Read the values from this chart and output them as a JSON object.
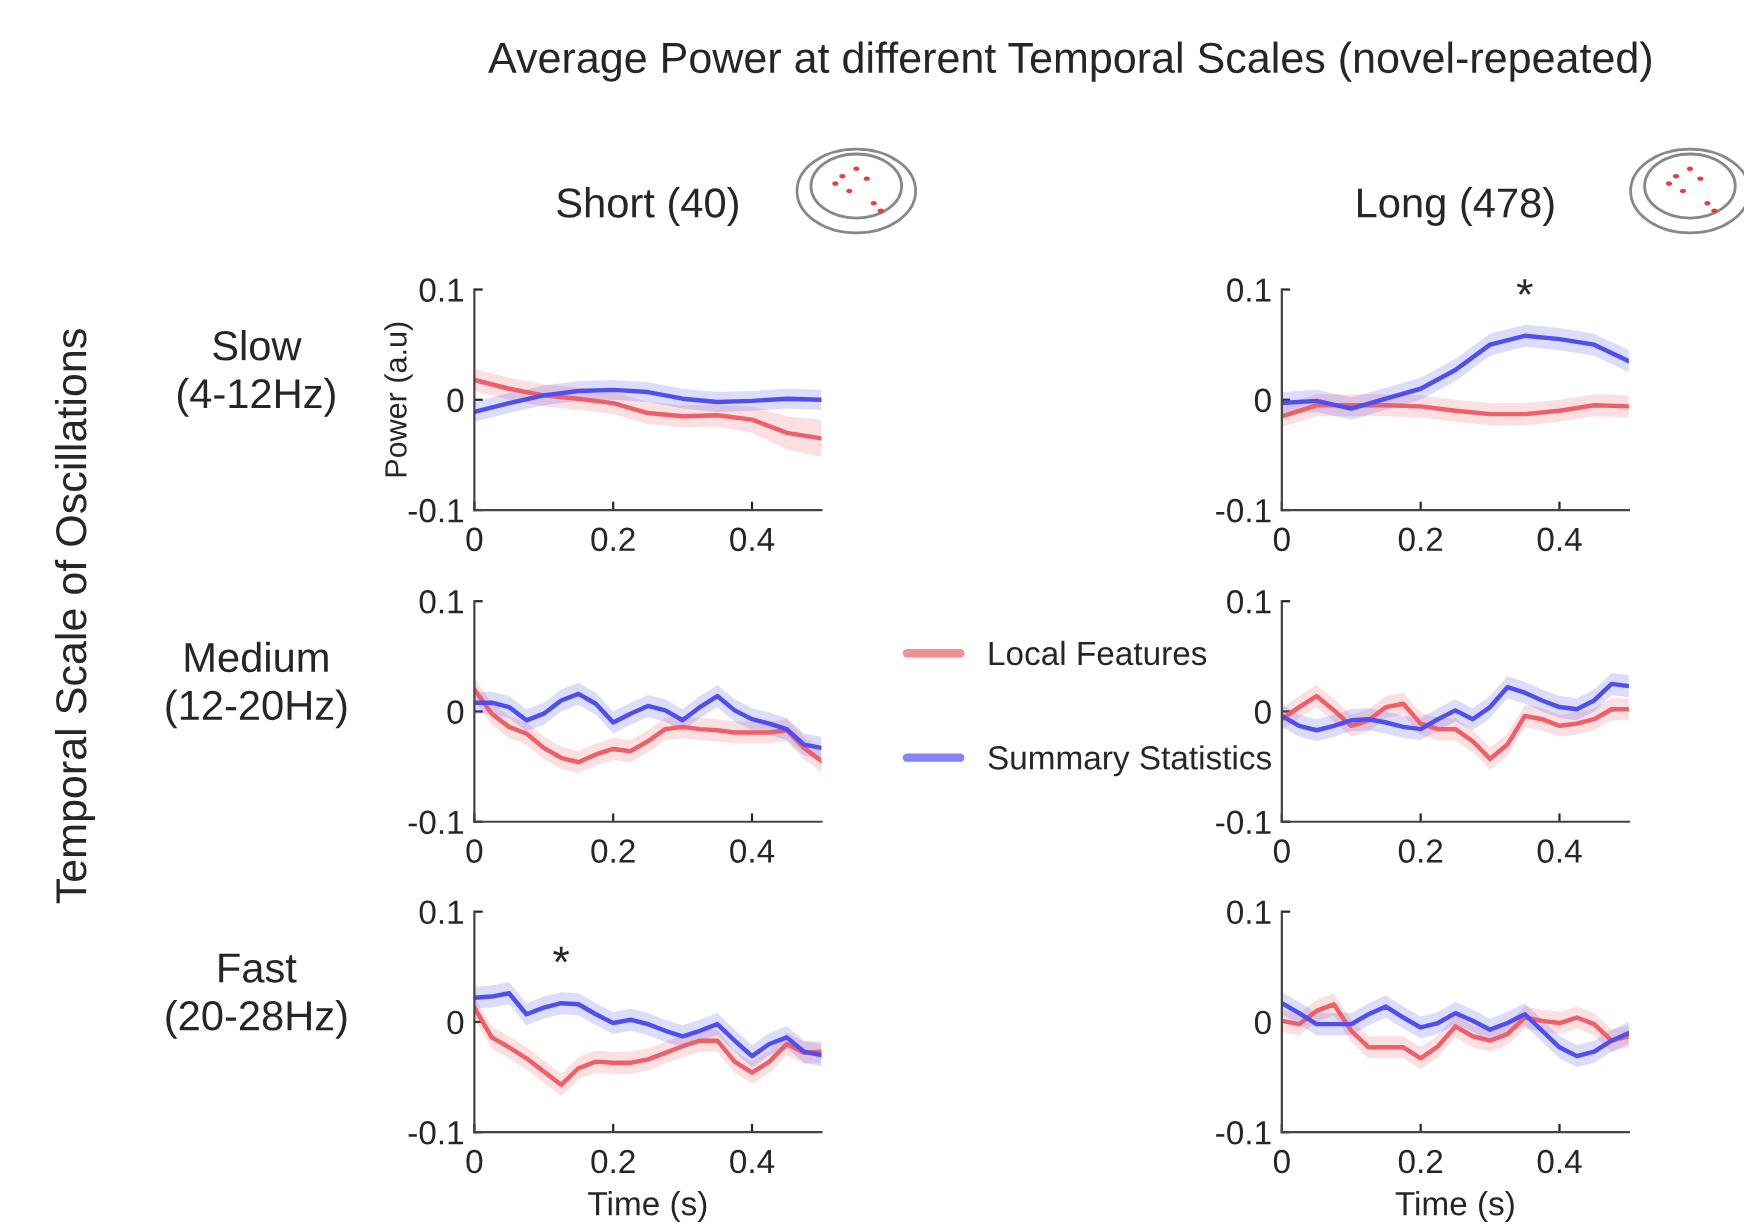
{
  "chart_data": [
    {
      "type": "line",
      "title": "Short (40)",
      "ylabel": "Power (a.u)",
      "x": [
        0,
        0.05,
        0.1,
        0.15,
        0.2,
        0.25,
        0.3,
        0.35,
        0.4,
        0.45,
        0.5
      ],
      "xlim": [
        0,
        0.5
      ],
      "xticks": [
        0,
        0.2,
        0.4
      ],
      "ylim": [
        -0.1,
        0.1
      ],
      "yticks": [
        -0.1,
        0,
        0.1
      ],
      "line_style": "solid",
      "legend": "right",
      "annotations": [
        "Slow\n(4-12Hz)",
        "Average Power at different Temporal Scales (novel-repeated)",
        "Temporal Scale of Oscillations"
      ],
      "series": [
        {
          "name": "Local Features",
          "color": "#ef5f68",
          "values": [
            0.018,
            0.01,
            0.004,
            0.001,
            -0.003,
            -0.012,
            -0.015,
            -0.014,
            -0.018,
            -0.03,
            -0.035
          ],
          "lower": [
            0.008,
            0.0,
            -0.006,
            -0.009,
            -0.013,
            -0.022,
            -0.025,
            -0.024,
            -0.03,
            -0.045,
            -0.052
          ],
          "upper": [
            0.028,
            0.02,
            0.014,
            0.011,
            0.007,
            -0.002,
            -0.005,
            -0.004,
            -0.006,
            -0.015,
            -0.018
          ]
        },
        {
          "name": "Summary Statistics",
          "color": "#4f4ff0",
          "values": [
            -0.011,
            -0.003,
            0.004,
            0.008,
            0.009,
            0.007,
            0.001,
            -0.002,
            -0.001,
            0.001,
            0.0
          ],
          "lower": [
            -0.02,
            -0.012,
            -0.005,
            -0.001,
            0.0,
            -0.002,
            -0.008,
            -0.011,
            -0.01,
            -0.008,
            -0.009
          ],
          "upper": [
            -0.002,
            0.006,
            0.013,
            0.017,
            0.018,
            0.016,
            0.01,
            0.007,
            0.008,
            0.01,
            0.009
          ]
        }
      ]
    },
    {
      "type": "line",
      "title": "Long (478)",
      "x": [
        0,
        0.05,
        0.1,
        0.15,
        0.2,
        0.25,
        0.3,
        0.35,
        0.4,
        0.45,
        0.5
      ],
      "xlim": [
        0,
        0.5
      ],
      "xticks": [
        0,
        0.2,
        0.4
      ],
      "ylim": [
        -0.1,
        0.1
      ],
      "yticks": [
        -0.1,
        0,
        0.1
      ],
      "line_style": "solid",
      "annotations": [
        "*"
      ],
      "series": [
        {
          "color": "#ef5f68",
          "values": [
            -0.015,
            -0.005,
            -0.005,
            -0.005,
            -0.006,
            -0.01,
            -0.013,
            -0.013,
            -0.01,
            -0.005,
            -0.006
          ],
          "lower": [
            -0.025,
            -0.015,
            -0.015,
            -0.015,
            -0.016,
            -0.02,
            -0.023,
            -0.023,
            -0.02,
            -0.015,
            -0.016
          ],
          "upper": [
            -0.005,
            0.005,
            0.005,
            0.005,
            0.004,
            0.0,
            -0.003,
            -0.003,
            0.0,
            0.005,
            0.004
          ]
        },
        {
          "color": "#4f4ff0",
          "values": [
            -0.003,
            -0.001,
            -0.008,
            0.001,
            0.01,
            0.027,
            0.05,
            0.058,
            0.055,
            0.05,
            0.035
          ],
          "lower": [
            -0.013,
            -0.011,
            -0.018,
            -0.009,
            0.0,
            0.017,
            0.04,
            0.048,
            0.045,
            0.04,
            0.025
          ],
          "upper": [
            0.007,
            0.009,
            0.002,
            0.011,
            0.02,
            0.037,
            0.06,
            0.068,
            0.065,
            0.06,
            0.045
          ]
        }
      ]
    },
    {
      "type": "line",
      "x": [
        0,
        0.025,
        0.05,
        0.075,
        0.1,
        0.125,
        0.15,
        0.175,
        0.2,
        0.225,
        0.25,
        0.275,
        0.3,
        0.325,
        0.35,
        0.375,
        0.4,
        0.425,
        0.45,
        0.475,
        0.5
      ],
      "xlim": [
        0,
        0.5
      ],
      "xticks": [
        0,
        0.2,
        0.4
      ],
      "ylim": [
        -0.1,
        0.1
      ],
      "yticks": [
        -0.1,
        0,
        0.1
      ],
      "line_style": "solid",
      "annotations": [
        "Medium\n(12-20Hz)"
      ],
      "series": [
        {
          "color": "#ef5f68",
          "values": [
            0.02,
            -0.002,
            -0.014,
            -0.02,
            -0.033,
            -0.042,
            -0.046,
            -0.039,
            -0.034,
            -0.036,
            -0.027,
            -0.016,
            -0.014,
            -0.016,
            -0.017,
            -0.019,
            -0.019,
            -0.019,
            -0.017,
            -0.033,
            -0.045
          ],
          "lower": [
            0.01,
            -0.012,
            -0.024,
            -0.03,
            -0.043,
            -0.052,
            -0.056,
            -0.049,
            -0.044,
            -0.046,
            -0.037,
            -0.026,
            -0.024,
            -0.026,
            -0.027,
            -0.029,
            -0.029,
            -0.029,
            -0.027,
            -0.043,
            -0.055
          ],
          "upper": [
            0.03,
            0.008,
            -0.004,
            -0.01,
            -0.023,
            -0.032,
            -0.036,
            -0.029,
            -0.024,
            -0.026,
            -0.017,
            -0.006,
            -0.004,
            -0.006,
            -0.007,
            -0.009,
            -0.009,
            -0.009,
            -0.007,
            -0.023,
            -0.035
          ]
        },
        {
          "color": "#4f4ff0",
          "values": [
            0.008,
            0.008,
            0.004,
            -0.008,
            -0.002,
            0.01,
            0.016,
            0.007,
            -0.01,
            -0.002,
            0.005,
            0.001,
            -0.008,
            0.004,
            0.014,
            0.001,
            -0.007,
            -0.011,
            -0.016,
            -0.03,
            -0.033
          ],
          "lower": [
            -0.002,
            -0.002,
            -0.006,
            -0.018,
            -0.012,
            0.0,
            0.006,
            -0.003,
            -0.02,
            -0.012,
            -0.005,
            -0.009,
            -0.018,
            -0.006,
            0.004,
            -0.009,
            -0.017,
            -0.021,
            -0.026,
            -0.04,
            -0.043
          ],
          "upper": [
            0.018,
            0.018,
            0.014,
            0.002,
            0.008,
            0.02,
            0.026,
            0.017,
            0.0,
            0.008,
            0.015,
            0.011,
            0.002,
            0.014,
            0.024,
            0.011,
            0.003,
            -0.001,
            -0.006,
            -0.02,
            -0.023
          ]
        }
      ]
    },
    {
      "type": "line",
      "x": [
        0,
        0.025,
        0.05,
        0.075,
        0.1,
        0.125,
        0.15,
        0.175,
        0.2,
        0.225,
        0.25,
        0.275,
        0.3,
        0.325,
        0.35,
        0.375,
        0.4,
        0.425,
        0.45,
        0.475,
        0.5
      ],
      "xlim": [
        0,
        0.5
      ],
      "xticks": [
        0,
        0.2,
        0.4
      ],
      "ylim": [
        -0.1,
        0.1
      ],
      "yticks": [
        -0.1,
        0,
        0.1
      ],
      "line_style": "solid",
      "series": [
        {
          "color": "#ef5f68",
          "values": [
            -0.007,
            0.004,
            0.014,
            0.001,
            -0.013,
            -0.008,
            0.004,
            0.007,
            -0.011,
            -0.016,
            -0.016,
            -0.027,
            -0.043,
            -0.03,
            -0.004,
            -0.007,
            -0.013,
            -0.011,
            -0.007,
            0.002,
            0.002
          ],
          "lower": [
            -0.017,
            -0.006,
            0.004,
            -0.009,
            -0.023,
            -0.018,
            -0.006,
            -0.003,
            -0.021,
            -0.026,
            -0.026,
            -0.037,
            -0.053,
            -0.04,
            -0.014,
            -0.017,
            -0.023,
            -0.021,
            -0.017,
            -0.008,
            -0.008
          ],
          "upper": [
            0.003,
            0.014,
            0.024,
            0.011,
            -0.003,
            0.002,
            0.014,
            0.017,
            -0.001,
            -0.006,
            -0.006,
            -0.017,
            -0.033,
            -0.02,
            0.006,
            0.003,
            -0.003,
            -0.001,
            0.003,
            0.012,
            0.012
          ]
        },
        {
          "color": "#4f4ff0",
          "values": [
            -0.004,
            -0.013,
            -0.017,
            -0.013,
            -0.008,
            -0.007,
            -0.01,
            -0.014,
            -0.016,
            -0.007,
            0.001,
            -0.007,
            0.004,
            0.022,
            0.017,
            0.01,
            0.004,
            0.002,
            0.01,
            0.025,
            0.023
          ],
          "lower": [
            -0.014,
            -0.023,
            -0.027,
            -0.023,
            -0.018,
            -0.017,
            -0.02,
            -0.024,
            -0.026,
            -0.017,
            -0.009,
            -0.017,
            -0.006,
            0.012,
            0.007,
            0.0,
            -0.006,
            -0.008,
            0.0,
            0.015,
            0.013
          ],
          "upper": [
            0.006,
            -0.003,
            -0.007,
            -0.003,
            0.002,
            0.003,
            0.0,
            -0.004,
            -0.006,
            0.003,
            0.011,
            0.003,
            0.014,
            0.032,
            0.027,
            0.02,
            0.014,
            0.012,
            0.02,
            0.035,
            0.033
          ]
        }
      ]
    },
    {
      "type": "line",
      "xlabel": "Time (s)",
      "x": [
        0,
        0.025,
        0.05,
        0.075,
        0.1,
        0.125,
        0.15,
        0.175,
        0.2,
        0.225,
        0.25,
        0.275,
        0.3,
        0.325,
        0.35,
        0.375,
        0.4,
        0.425,
        0.45,
        0.475,
        0.5
      ],
      "xlim": [
        0,
        0.5
      ],
      "xticks": [
        0,
        0.2,
        0.4
      ],
      "ylim": [
        -0.1,
        0.1
      ],
      "yticks": [
        -0.1,
        0,
        0.1
      ],
      "line_style": "solid",
      "annotations": [
        "Fast\n(20-28Hz)",
        "*"
      ],
      "series": [
        {
          "color": "#ef5f68",
          "values": [
            0.013,
            -0.014,
            -0.023,
            -0.033,
            -0.045,
            -0.057,
            -0.042,
            -0.036,
            -0.037,
            -0.037,
            -0.034,
            -0.028,
            -0.022,
            -0.017,
            -0.017,
            -0.036,
            -0.046,
            -0.036,
            -0.02,
            -0.028,
            -0.027
          ],
          "lower": [
            0.003,
            -0.024,
            -0.033,
            -0.043,
            -0.055,
            -0.067,
            -0.052,
            -0.046,
            -0.047,
            -0.047,
            -0.044,
            -0.038,
            -0.032,
            -0.027,
            -0.027,
            -0.046,
            -0.056,
            -0.046,
            -0.03,
            -0.038,
            -0.037
          ],
          "upper": [
            0.023,
            -0.004,
            -0.013,
            -0.023,
            -0.035,
            -0.047,
            -0.032,
            -0.026,
            -0.027,
            -0.027,
            -0.024,
            -0.018,
            -0.012,
            -0.007,
            -0.007,
            -0.026,
            -0.036,
            -0.026,
            -0.01,
            -0.018,
            -0.017
          ]
        },
        {
          "color": "#4f4ff0",
          "values": [
            0.022,
            0.023,
            0.026,
            0.007,
            0.013,
            0.017,
            0.016,
            0.007,
            -0.001,
            0.002,
            -0.002,
            -0.008,
            -0.013,
            -0.008,
            -0.002,
            -0.017,
            -0.031,
            -0.02,
            -0.014,
            -0.027,
            -0.03
          ],
          "lower": [
            0.012,
            0.013,
            0.016,
            -0.003,
            0.003,
            0.007,
            0.006,
            -0.003,
            -0.011,
            -0.008,
            -0.012,
            -0.018,
            -0.023,
            -0.018,
            -0.012,
            -0.027,
            -0.041,
            -0.03,
            -0.024,
            -0.037,
            -0.04
          ],
          "upper": [
            0.032,
            0.033,
            0.036,
            0.017,
            0.023,
            0.027,
            0.026,
            0.017,
            0.009,
            0.012,
            0.008,
            0.002,
            -0.003,
            0.002,
            0.008,
            -0.007,
            -0.021,
            -0.01,
            -0.004,
            -0.017,
            -0.02
          ]
        }
      ]
    },
    {
      "type": "line",
      "xlabel": "Time (s)",
      "x": [
        0,
        0.025,
        0.05,
        0.075,
        0.1,
        0.125,
        0.15,
        0.175,
        0.2,
        0.225,
        0.25,
        0.275,
        0.3,
        0.325,
        0.35,
        0.375,
        0.4,
        0.425,
        0.45,
        0.475,
        0.5
      ],
      "xlim": [
        0,
        0.5
      ],
      "xticks": [
        0,
        0.2,
        0.4
      ],
      "ylim": [
        -0.1,
        0.1
      ],
      "yticks": [
        -0.1,
        0,
        0.1
      ],
      "line_style": "solid",
      "series": [
        {
          "color": "#ef5f68",
          "values": [
            0.001,
            -0.002,
            0.01,
            0.016,
            -0.008,
            -0.023,
            -0.023,
            -0.023,
            -0.033,
            -0.022,
            -0.004,
            -0.013,
            -0.017,
            -0.011,
            0.004,
            0.001,
            -0.001,
            0.004,
            -0.002,
            -0.017,
            -0.013
          ],
          "lower": [
            -0.009,
            -0.012,
            0.0,
            0.006,
            -0.018,
            -0.033,
            -0.033,
            -0.033,
            -0.043,
            -0.032,
            -0.014,
            -0.023,
            -0.027,
            -0.021,
            -0.006,
            -0.009,
            -0.011,
            -0.006,
            -0.012,
            -0.027,
            -0.023
          ],
          "upper": [
            0.011,
            0.008,
            0.02,
            0.026,
            0.002,
            -0.013,
            -0.013,
            -0.013,
            -0.023,
            -0.012,
            0.006,
            -0.003,
            -0.007,
            -0.001,
            0.014,
            0.011,
            0.009,
            0.014,
            0.008,
            -0.007,
            -0.003
          ]
        },
        {
          "color": "#4f4ff0",
          "values": [
            0.017,
            0.008,
            -0.002,
            -0.002,
            -0.002,
            0.007,
            0.014,
            0.004,
            -0.005,
            -0.001,
            0.008,
            0.001,
            -0.007,
            -0.001,
            0.007,
            -0.008,
            -0.023,
            -0.031,
            -0.027,
            -0.017,
            -0.01
          ],
          "lower": [
            0.007,
            -0.002,
            -0.012,
            -0.012,
            -0.012,
            -0.003,
            0.004,
            -0.006,
            -0.015,
            -0.011,
            -0.002,
            -0.009,
            -0.017,
            -0.011,
            -0.003,
            -0.018,
            -0.033,
            -0.041,
            -0.037,
            -0.027,
            -0.02
          ],
          "upper": [
            0.027,
            0.018,
            0.008,
            0.008,
            0.008,
            0.017,
            0.024,
            0.014,
            0.005,
            0.009,
            0.018,
            0.011,
            0.003,
            0.009,
            0.017,
            0.002,
            -0.013,
            -0.021,
            -0.017,
            -0.007,
            0.0
          ]
        }
      ]
    }
  ]
}
